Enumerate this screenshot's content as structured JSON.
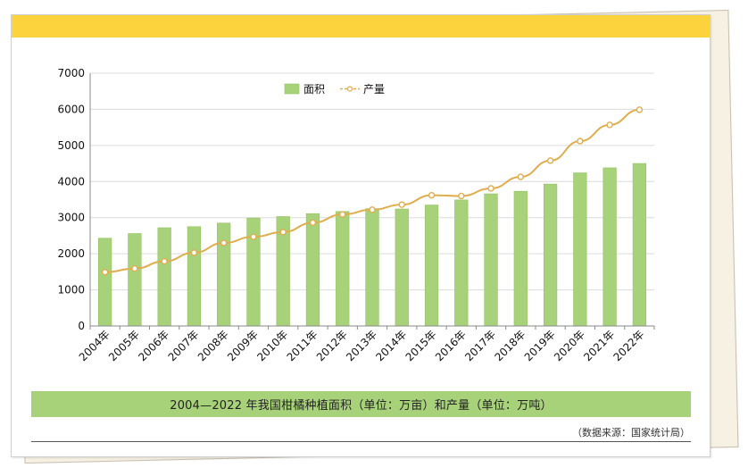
{
  "chart_data": {
    "type": "bar",
    "categories": [
      "2004年",
      "2005年",
      "2006年",
      "2007年",
      "2008年",
      "2009年",
      "2010年",
      "2011年",
      "2012年",
      "2013年",
      "2014年",
      "2015年",
      "2016年",
      "2017年",
      "2018年",
      "2019年",
      "2020年",
      "2021年",
      "2022年"
    ],
    "series": [
      {
        "name": "面积",
        "kind": "bar",
        "color": "#a8d27a",
        "values": [
          2430,
          2560,
          2720,
          2750,
          2850,
          2990,
          3030,
          3110,
          3170,
          3250,
          3240,
          3350,
          3490,
          3660,
          3730,
          3930,
          4240,
          4380,
          4500
        ]
      },
      {
        "name": "产量",
        "kind": "line",
        "color": "#e0ad4e",
        "values": [
          1490,
          1590,
          1790,
          2030,
          2300,
          2470,
          2600,
          2860,
          3090,
          3220,
          3360,
          3620,
          3600,
          3810,
          4130,
          4580,
          5120,
          5570,
          5990
        ]
      }
    ],
    "y_ticks": [
      "0",
      "1000",
      "2000",
      "3000",
      "4000",
      "5000",
      "6000",
      "7000"
    ],
    "ylim": [
      0,
      7000
    ],
    "grid": true,
    "legend_position": "top-center"
  },
  "caption": "2004—2022 年我国柑橘种植面积（单位：万亩）和产量（单位：万吨）",
  "source": "（数据来源：国家统计局）",
  "colors": {
    "top_band": "#fcd23d",
    "caption_bar": "#a8d27a",
    "bar_fill": "#a8d27a",
    "line_stroke": "#e0ad4e"
  }
}
